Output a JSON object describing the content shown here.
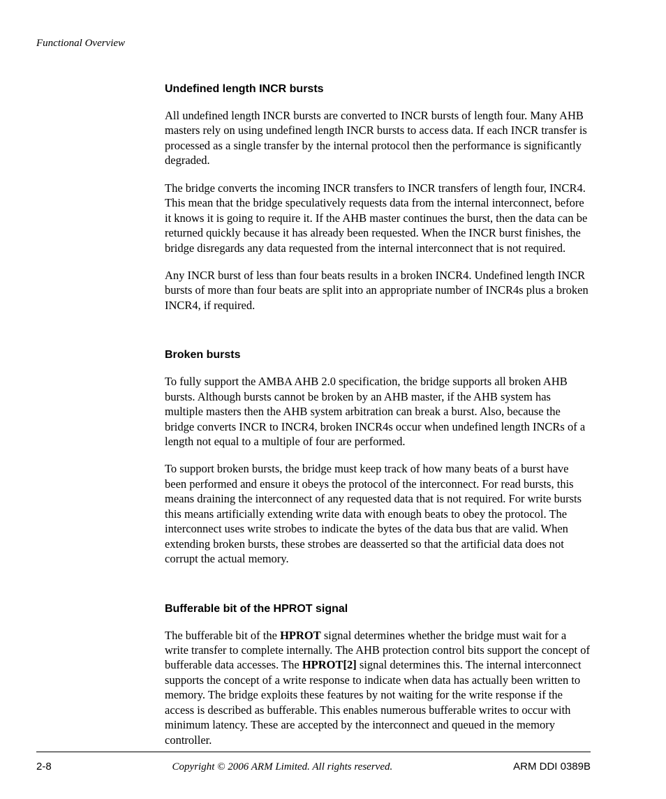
{
  "running_head": "Functional Overview",
  "sections": {
    "s1": {
      "heading": "Undefined length INCR bursts",
      "p1": "All undefined length INCR bursts are converted to INCR bursts of length four. Many AHB masters rely on using undefined length INCR bursts to access data. If each INCR transfer is processed as a single transfer by the internal protocol then the performance is significantly degraded.",
      "p2": "The bridge converts the incoming INCR transfers to INCR transfers of length four, INCR4. This mean that the bridge speculatively requests data from the internal interconnect, before it knows it is going to require it. If the AHB master continues the burst, then the data can be returned quickly because it has already been requested. When the INCR burst finishes, the bridge disregards any data requested from the internal interconnect that is not required.",
      "p3": "Any INCR burst of less than four beats results in a broken INCR4. Undefined length INCR bursts of more than four beats are split into an appropriate number of INCR4s plus a broken INCR4, if required."
    },
    "s2": {
      "heading": "Broken bursts",
      "p1": "To fully support the AMBA AHB 2.0 specification, the bridge supports all broken AHB bursts. Although bursts cannot be broken by an AHB master, if the AHB system has multiple masters then the AHB system arbitration can break a burst. Also, because the bridge converts INCR to INCR4, broken INCR4s occur when undefined length INCRs of a length not equal to a multiple of four are performed.",
      "p2": "To support broken bursts, the bridge must keep track of how many beats of a burst have been performed and ensure it obeys the protocol of the interconnect. For read bursts, this means draining the interconnect of any requested data that is not required. For write bursts this means artificially extending write data with enough beats to obey the protocol. The interconnect uses write strobes to indicate the bytes of the data bus that are valid. When extending broken bursts, these strobes are deasserted so that the artificial data does not corrupt the actual memory."
    },
    "s3": {
      "heading": "Bufferable bit of the HPROT signal",
      "p1_a": "The bufferable bit of the ",
      "p1_b": "HPROT",
      "p1_c": " signal determines whether the bridge must wait for a write transfer to complete internally. The AHB protection control bits support the concept of bufferable data accesses. The ",
      "p1_d": "HPROT[2]",
      "p1_e": " signal determines this. The internal interconnect supports the concept of a write response to indicate when data has actually been written to memory. The bridge exploits these features by not waiting for the write response if the access is described as bufferable. This enables numerous bufferable writes to occur with minimum latency. These are accepted by the interconnect and queued in the memory controller."
    }
  },
  "footer": {
    "left": "2-8",
    "center": "Copyright © 2006 ARM Limited. All rights reserved.",
    "right": "ARM DDI 0389B"
  }
}
